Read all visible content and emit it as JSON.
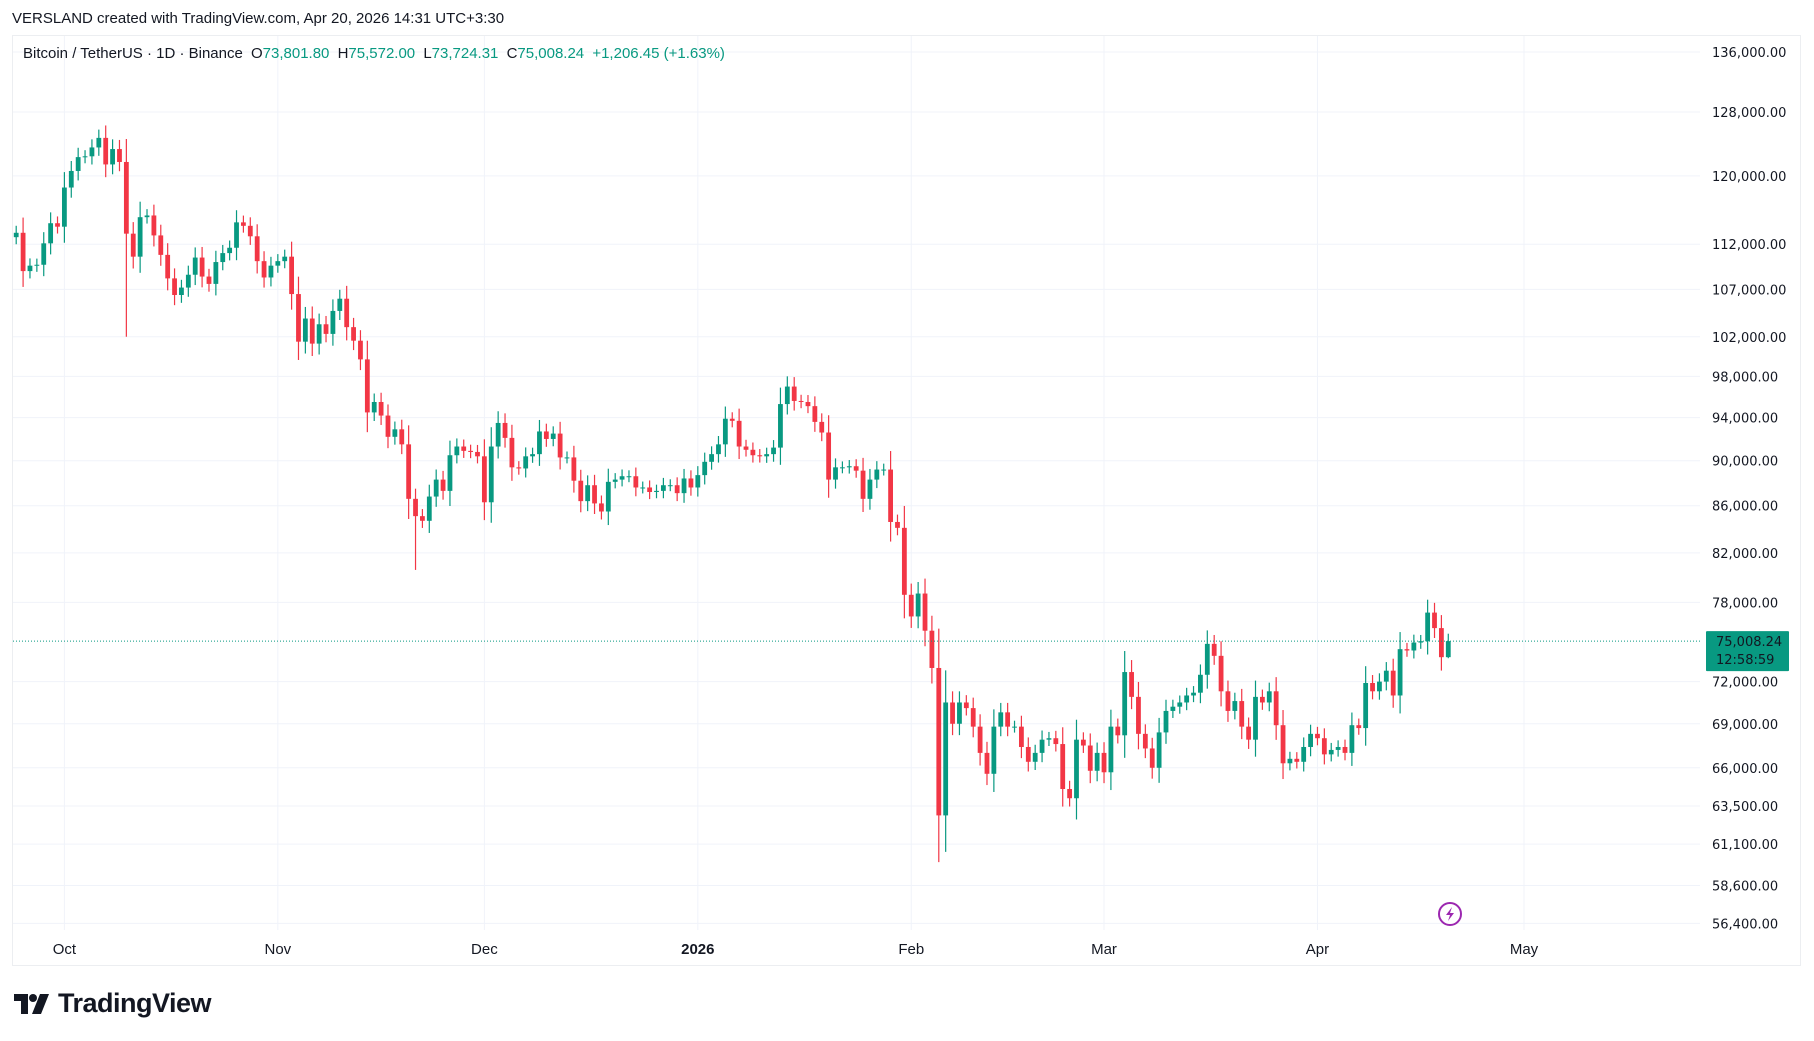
{
  "credit": "VERSLAND created with TradingView.com, Apr 20, 2026 14:31 UTC+3:30",
  "legend": {
    "symbol": "Bitcoin / TetherUS · 1D · Binance",
    "o_label": "O",
    "o": "73,801.80",
    "h_label": "H",
    "h": "75,572.00",
    "l_label": "L",
    "l": "73,724.31",
    "c_label": "C",
    "c": "75,008.24",
    "change": "+1,206.45 (+1.63%)"
  },
  "price_label": {
    "price": "75,008.24",
    "countdown": "12:58:59"
  },
  "logo_text": "TradingView",
  "colors": {
    "up": "#089981",
    "down": "#f23645",
    "grid": "#f0f3fa",
    "lightning": "#9c27b0"
  },
  "chart_data": {
    "type": "candlestick",
    "title": "Bitcoin / TetherUS · 1D · Binance",
    "scale": "log",
    "ylim": [
      56400,
      136000
    ],
    "start_date": "2025-09-24",
    "interval": "1D",
    "current_price": 75008.24,
    "y_ticks": [
      136000,
      128000,
      120000,
      112000,
      107000,
      102000,
      98000,
      94000,
      90000,
      86000,
      82000,
      78000,
      72000,
      69000,
      66000,
      63500,
      61100,
      58600,
      56400
    ],
    "y_tick_labels": [
      "136,000.00",
      "128,000.00",
      "120,000.00",
      "112,000.00",
      "107,000.00",
      "102,000.00",
      "98,000.00",
      "94,000.00",
      "90,000.00",
      "86,000.00",
      "82,000.00",
      "78,000.00",
      "72,000.00",
      "69,000.00",
      "66,000.00",
      "63,500.00",
      "61,100.00",
      "58,600.00",
      "56,400.00"
    ],
    "x_ticks": [
      {
        "label": "Oct",
        "day_index": 7,
        "bold": false
      },
      {
        "label": "Nov",
        "day_index": 38,
        "bold": false
      },
      {
        "label": "Dec",
        "day_index": 68,
        "bold": false
      },
      {
        "label": "2026",
        "day_index": 99,
        "bold": true
      },
      {
        "label": "Feb",
        "day_index": 130,
        "bold": false
      },
      {
        "label": "Mar",
        "day_index": 158,
        "bold": false
      },
      {
        "label": "Apr",
        "day_index": 189,
        "bold": false
      },
      {
        "label": "May",
        "day_index": 219,
        "bold": false
      }
    ],
    "first_open": 112800,
    "close": [
      113.3,
      109.0,
      109.6,
      109.7,
      112.1,
      114.4,
      114.0,
      118.6,
      120.6,
      122.3,
      122.4,
      123.5,
      124.7,
      121.4,
      123.3,
      121.7,
      113.2,
      110.6,
      115.1,
      115.3,
      113.0,
      110.8,
      108.2,
      106.4,
      107.2,
      108.6,
      110.5,
      108.4,
      107.6,
      110.0,
      111.0,
      111.6,
      114.5,
      114.1,
      112.9,
      110.1,
      108.3,
      109.6,
      110.1,
      110.6,
      106.5,
      101.5,
      103.9,
      101.3,
      103.3,
      102.3,
      104.7,
      106.0,
      103.0,
      101.6,
      99.7,
      94.5,
      95.5,
      94.2,
      92.2,
      92.9,
      91.5,
      86.6,
      85.1,
      84.7,
      86.8,
      88.3,
      87.3,
      90.5,
      91.3,
      90.9,
      90.8,
      90.4,
      86.3,
      91.3,
      93.5,
      92.1,
      89.4,
      89.3,
      90.4,
      90.6,
      92.7,
      92.0,
      92.5,
      90.3,
      90.3,
      88.2,
      86.4,
      87.8,
      86.2,
      85.5,
      88.1,
      88.3,
      88.6,
      88.6,
      87.6,
      87.6,
      87.2,
      87.3,
      87.8,
      87.8,
      87.1,
      88.4,
      87.6,
      88.7,
      89.9,
      90.6,
      91.5,
      93.9,
      93.7,
      91.3,
      91.0,
      90.5,
      90.4,
      90.6,
      91.2,
      95.3,
      97.0,
      95.6,
      95.5,
      95.1,
      93.6,
      92.6,
      88.3,
      89.4,
      89.4,
      89.5,
      89.1,
      86.6,
      88.3,
      89.2,
      89.2,
      84.6,
      84.1,
      78.6,
      76.9,
      78.7,
      75.8,
      73.0,
      62.9,
      70.5,
      69.0,
      70.5,
      70.1,
      68.8,
      67.0,
      65.6,
      68.8,
      69.8,
      68.8,
      68.8,
      67.4,
      66.4,
      67.0,
      67.9,
      68.0,
      67.6,
      64.6,
      64.0,
      67.9,
      67.5,
      65.8,
      67.0,
      65.7,
      68.8,
      68.2,
      72.7,
      70.9,
      68.3,
      67.3,
      66.0,
      68.4,
      69.9,
      70.2,
      70.5,
      71.0,
      71.2,
      72.5,
      74.8,
      73.9,
      71.3,
      69.9,
      70.6,
      68.8,
      67.9,
      70.9,
      70.5,
      71.3,
      68.9,
      66.3,
      66.6,
      66.4,
      67.4,
      68.3,
      68.0,
      66.9,
      67.2,
      67.4,
      67.0,
      68.9,
      68.7,
      71.9,
      71.3,
      72.0,
      72.8,
      71.0,
      74.4,
      74.3,
      74.9,
      75.0,
      77.2,
      76.0,
      73.8,
      75.008
    ],
    "close_unit": "thousand USDT",
    "low_overrides": {
      "16": 102.0,
      "58": 80.6,
      "134": 60.0
    },
    "last_candle": {
      "open": 73801.8,
      "high": 75572.0,
      "low": 73724.31,
      "close": 75008.24
    }
  }
}
